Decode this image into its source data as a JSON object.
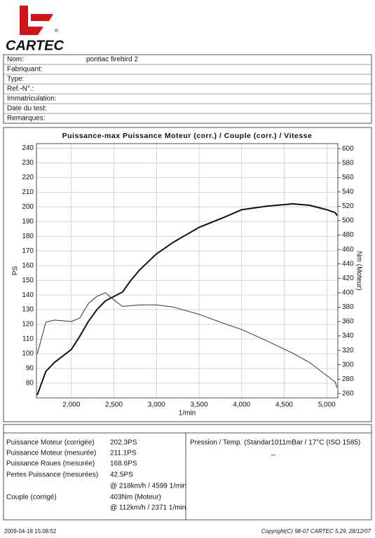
{
  "header": {
    "brand": "CARTEC",
    "mark": "®"
  },
  "form": [
    {
      "label": "Nom:",
      "value": "pontiac firebird 2"
    },
    {
      "label": "Fabriquant:"
    },
    {
      "label": "Type:"
    },
    {
      "label": "Ref.-N°.:"
    },
    {
      "label": "Immatriculation:"
    },
    {
      "label": "Date du test:"
    },
    {
      "label": "Remarques:"
    }
  ],
  "chart_data": {
    "type": "line",
    "title": "Puissance-max Puissance Moteur (corr.) / Couple (corr.) / Vitesse",
    "xlabel": "1/min",
    "ylabel": "PS",
    "y2label": "Nm (Moteur)",
    "x": [
      1600,
      1700,
      1800,
      2000,
      2100,
      2200,
      2300,
      2400,
      2500,
      2600,
      2700,
      2800,
      3000,
      3200,
      3500,
      3800,
      4000,
      4300,
      4600,
      4800,
      5000,
      5100,
      5120
    ],
    "series": [
      {
        "name": "Puissance",
        "color": "#111",
        "width": 2,
        "values": [
          72,
          88,
          94,
          103,
          112,
          122,
          130,
          136,
          139,
          142,
          150,
          157,
          168,
          176,
          186,
          193,
          198,
          200.5,
          202,
          201,
          198,
          196,
          194
        ]
      },
      {
        "name": "Couple",
        "color": "#333",
        "width": 1,
        "axis": "y2",
        "values": [
          315,
          359,
          362,
          360,
          365,
          385,
          395,
          400,
          390,
          381,
          382,
          383,
          383,
          380,
          370,
          357,
          349,
          333,
          316,
          303,
          285,
          276,
          268
        ]
      }
    ],
    "xlim": [
      1590,
      5130
    ],
    "ylim": [
      70,
      243
    ],
    "y2lim": [
      254,
      607
    ],
    "xticks": [
      {
        "value": 2000,
        "label": "2,000"
      },
      {
        "value": 2500,
        "label": "2,500"
      },
      {
        "value": 3000,
        "label": "3,000"
      },
      {
        "value": 3500,
        "label": "3,500"
      },
      {
        "value": 4000,
        "label": "4,000"
      },
      {
        "value": 4500,
        "label": "4,500"
      },
      {
        "value": 5000,
        "label": "5,000"
      }
    ],
    "yticks": [
      80,
      90,
      100,
      110,
      120,
      130,
      140,
      150,
      160,
      170,
      180,
      190,
      200,
      210,
      220,
      230,
      240
    ],
    "y2ticks": [
      260,
      280,
      300,
      320,
      340,
      360,
      380,
      400,
      420,
      440,
      460,
      480,
      500,
      520,
      540,
      560,
      580,
      600
    ],
    "grid": true
  },
  "results": [
    {
      "label": "Puissance Moteur (corrigée)",
      "value": "202.3PS"
    },
    {
      "label": "Puissance Moteur (mesurée)",
      "value": "211.1PS"
    },
    {
      "label": "Puissance Roues (mesurée)",
      "value": "168.6PS"
    },
    {
      "label": "Pertes Puissance (mesurées)",
      "value": "42.5PS"
    },
    {
      "value": "@ 218km/h / 4599 1/min"
    },
    {
      "label": "Couple (corrigé)",
      "value": "403Nm (Moteur)"
    },
    {
      "value": "@ 112km/h / 2371 1/min"
    }
  ],
  "conditions": {
    "text": "Pression / Temp. (Standar1011mBar / 17°C     (ISO 1585)",
    "value": "--"
  },
  "footer": {
    "timestamp": "2009-04-18 15:08:52",
    "copyright": "Copyright(C) 98-07 CARTEC 5.29, 28/12/07"
  }
}
